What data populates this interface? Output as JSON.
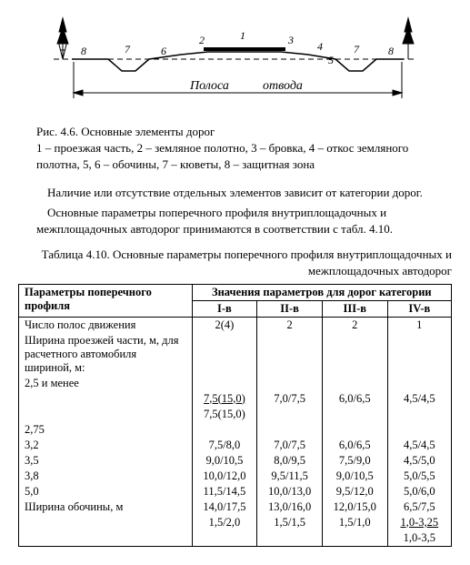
{
  "figure": {
    "polosa": "Полоса",
    "otvoda": "отвода",
    "labels": [
      "1",
      "2",
      "3",
      "4",
      "5",
      "6",
      "7",
      "7",
      "8",
      "8"
    ],
    "colors": {
      "line": "#000000",
      "bg": "#ffffff"
    }
  },
  "caption": {
    "title": "Рис. 4.6. Основные элементы дорог",
    "legend": "1 – проезжая часть, 2 – земляное полотно, 3 – бровка, 4 – откос земляного полотна, 5, 6 – обочины, 7 – кюветы, 8 – защитная зона"
  },
  "body_text": {
    "p1": "Наличие или отсутствие отдельных элементов зависит от категории дорог.",
    "p2": "Основные параметры поперечного профиля внутриплощадочных и межплощадочных автодорог принимаются в соответствии с табл. 4.10."
  },
  "table": {
    "title": "Таблица 4.10. Основные параметры поперечного профиля внутриплощадочных и межплощадочных автодорог",
    "header_param": "Параметры поперечного профиля",
    "header_values": "Значения параметров для дорог категории",
    "categories": [
      "I-в",
      "II-в",
      "III-в",
      "IV-в"
    ],
    "rows": [
      {
        "param": "Число полос движения",
        "vals": [
          "2(4)",
          "2",
          "2",
          "1"
        ]
      },
      {
        "param": "Ширина проезжей части, м, для расчетного автомобиля шириной, м:",
        "vals": [
          "",
          "",
          "",
          ""
        ]
      },
      {
        "param": "2,5 и менее",
        "vals": [
          "",
          "",
          "",
          ""
        ]
      },
      {
        "param": "",
        "vals": [
          "<span class='u'>7,5(15,0)</span>",
          "7,0/7,5",
          "6,0/6,5",
          "4,5/4,5"
        ]
      },
      {
        "param": "",
        "vals": [
          "7,5(15,0)",
          "",
          "",
          ""
        ]
      },
      {
        "param": "2,75",
        "vals": [
          "",
          "",
          "",
          ""
        ]
      },
      {
        "param": "3,2",
        "vals": [
          "7,5/8,0",
          "7,0/7,5",
          "6,0/6,5",
          "4,5/4,5"
        ]
      },
      {
        "param": "3,5",
        "vals": [
          "9,0/10,5",
          "8,0/9,5",
          "7,5/9,0",
          "4,5/5,0"
        ]
      },
      {
        "param": "3,8",
        "vals": [
          "10,0/12,0",
          "9,5/11,5",
          "9,0/10,5",
          "5,0/5,5"
        ]
      },
      {
        "param": "5,0",
        "vals": [
          "11,5/14,5",
          "10,0/13,0",
          "9,5/12,0",
          "5,0/6,0"
        ]
      },
      {
        "param": "Ширина обочины, м",
        "vals": [
          "14,0/17,5",
          "13,0/16,0",
          "12,0/15,0",
          "6,5/7,5"
        ]
      },
      {
        "param": "",
        "vals": [
          "1,5/2,0",
          "1,5/1,5",
          "1,5/1,0",
          "<span class='u'>1,0-3,25</span>"
        ]
      },
      {
        "param": "",
        "vals": [
          "",
          "",
          "",
          "1,0-3,5"
        ]
      }
    ]
  }
}
